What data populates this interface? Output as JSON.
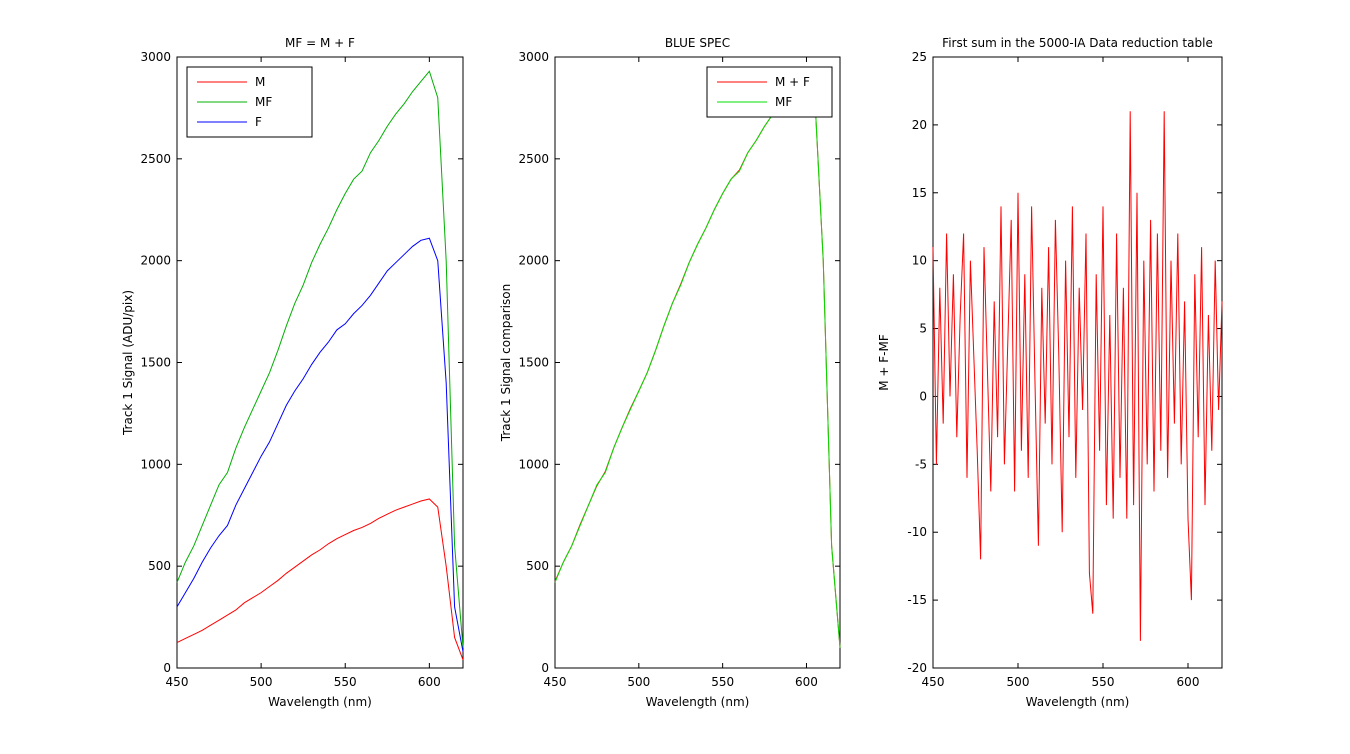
{
  "chart_data": [
    {
      "type": "line",
      "title": "MF = M + F",
      "xlabel": "Wavelength (nm)",
      "ylabel": "Track 1 Signal (ADU/pix)",
      "x": [
        450,
        455,
        460,
        465,
        470,
        475,
        480,
        485,
        490,
        495,
        500,
        505,
        510,
        515,
        520,
        525,
        530,
        535,
        540,
        545,
        550,
        555,
        560,
        565,
        570,
        575,
        580,
        585,
        590,
        595,
        600,
        605,
        610,
        615,
        620
      ],
      "xlim": [
        450,
        620
      ],
      "xticks": [
        450,
        500,
        550,
        600
      ],
      "ylim": [
        0,
        3000
      ],
      "yticks": [
        0,
        500,
        1000,
        1500,
        2000,
        2500,
        3000
      ],
      "legend": "northwest",
      "series": [
        {
          "name": "M",
          "color": "#ff0000",
          "values": [
            125,
            145,
            165,
            185,
            210,
            235,
            260,
            285,
            320,
            345,
            370,
            400,
            430,
            465,
            495,
            525,
            555,
            580,
            610,
            635,
            655,
            675,
            690,
            710,
            735,
            755,
            775,
            790,
            805,
            820,
            830,
            790,
            500,
            150,
            40
          ]
        },
        {
          "name": "MF",
          "color": "#00b000",
          "values": [
            420,
            520,
            600,
            700,
            800,
            900,
            960,
            1080,
            1180,
            1270,
            1360,
            1450,
            1560,
            1680,
            1790,
            1880,
            1990,
            2080,
            2160,
            2250,
            2330,
            2400,
            2440,
            2530,
            2590,
            2660,
            2720,
            2770,
            2830,
            2880,
            2930,
            2800,
            2000,
            600,
            100
          ]
        },
        {
          "name": "F",
          "color": "#0000ff",
          "values": [
            300,
            370,
            440,
            520,
            590,
            650,
            700,
            800,
            880,
            960,
            1040,
            1110,
            1200,
            1290,
            1360,
            1420,
            1490,
            1550,
            1600,
            1660,
            1690,
            1740,
            1780,
            1830,
            1890,
            1950,
            1990,
            2030,
            2070,
            2100,
            2110,
            2000,
            1400,
            300,
            80
          ]
        }
      ]
    },
    {
      "type": "line",
      "title": "BLUE SPEC",
      "xlabel": "Wavelength (nm)",
      "ylabel": "Track 1 Signal comparison",
      "x": [
        450,
        455,
        460,
        465,
        470,
        475,
        480,
        485,
        490,
        495,
        500,
        505,
        510,
        515,
        520,
        525,
        530,
        535,
        540,
        545,
        550,
        555,
        560,
        565,
        570,
        575,
        580,
        585,
        590,
        595,
        600,
        605,
        610,
        615,
        620
      ],
      "xlim": [
        450,
        620
      ],
      "xticks": [
        450,
        500,
        550,
        600
      ],
      "ylim": [
        0,
        3000
      ],
      "yticks": [
        0,
        500,
        1000,
        1500,
        2000,
        2500,
        3000
      ],
      "legend": "northeast",
      "series": [
        {
          "name": "M + F",
          "color": "#ff0000",
          "values": [
            425,
            520,
            600,
            705,
            800,
            895,
            965,
            1080,
            1180,
            1275,
            1360,
            1450,
            1560,
            1680,
            1790,
            1885,
            1990,
            2080,
            2160,
            2250,
            2330,
            2400,
            2445,
            2530,
            2590,
            2660,
            2720,
            2770,
            2830,
            2880,
            2930,
            2800,
            2000,
            600,
            100
          ]
        },
        {
          "name": "MF",
          "color": "#00e000",
          "values": [
            420,
            520,
            600,
            700,
            800,
            900,
            960,
            1080,
            1180,
            1270,
            1360,
            1450,
            1560,
            1680,
            1790,
            1880,
            1990,
            2080,
            2160,
            2250,
            2330,
            2400,
            2440,
            2530,
            2590,
            2660,
            2720,
            2770,
            2830,
            2880,
            2930,
            2800,
            2000,
            600,
            100
          ]
        }
      ]
    },
    {
      "type": "line",
      "title": "First sum in the 5000-IA Data reduction table",
      "xlabel": "Wavelength (nm)",
      "ylabel": "M + F-MF",
      "x": [
        450,
        452,
        454,
        456,
        458,
        460,
        462,
        464,
        466,
        468,
        470,
        472,
        474,
        476,
        478,
        480,
        482,
        484,
        486,
        488,
        490,
        492,
        494,
        496,
        498,
        500,
        502,
        504,
        506,
        508,
        510,
        512,
        514,
        516,
        518,
        520,
        522,
        524,
        526,
        528,
        530,
        532,
        534,
        536,
        538,
        540,
        542,
        544,
        546,
        548,
        550,
        552,
        554,
        556,
        558,
        560,
        562,
        564,
        566,
        568,
        570,
        572,
        574,
        576,
        578,
        580,
        582,
        584,
        586,
        588,
        590,
        592,
        594,
        596,
        598,
        600,
        602,
        604,
        606,
        608,
        610,
        612,
        614,
        616,
        618,
        620
      ],
      "xlim": [
        450,
        620
      ],
      "xticks": [
        450,
        500,
        550,
        600
      ],
      "ylim": [
        -20,
        25
      ],
      "yticks": [
        -20,
        -15,
        -10,
        -5,
        0,
        5,
        10,
        15,
        20,
        25
      ],
      "series": [
        {
          "color": "#ff0000",
          "values": [
            11,
            -5,
            8,
            -2,
            12,
            0,
            9,
            -3,
            6,
            12,
            -6,
            10,
            3,
            -4,
            -12,
            11,
            2,
            -7,
            7,
            -3,
            14,
            -5,
            4,
            13,
            -7,
            15,
            -4,
            9,
            -6,
            14,
            1,
            -11,
            8,
            -2,
            11,
            -5,
            13,
            3,
            -10,
            10,
            -3,
            14,
            -6,
            8,
            -1,
            12,
            -13,
            -16,
            9,
            -4,
            14,
            -8,
            6,
            -9,
            12,
            -6,
            8,
            -9,
            21,
            -8,
            15,
            -18,
            10,
            -5,
            13,
            -7,
            12,
            -4,
            21,
            -6,
            10,
            -2,
            12,
            -5,
            7,
            -9,
            -15,
            9,
            -3,
            11,
            -8,
            6,
            -4,
            10,
            -1,
            7
          ]
        }
      ]
    }
  ]
}
